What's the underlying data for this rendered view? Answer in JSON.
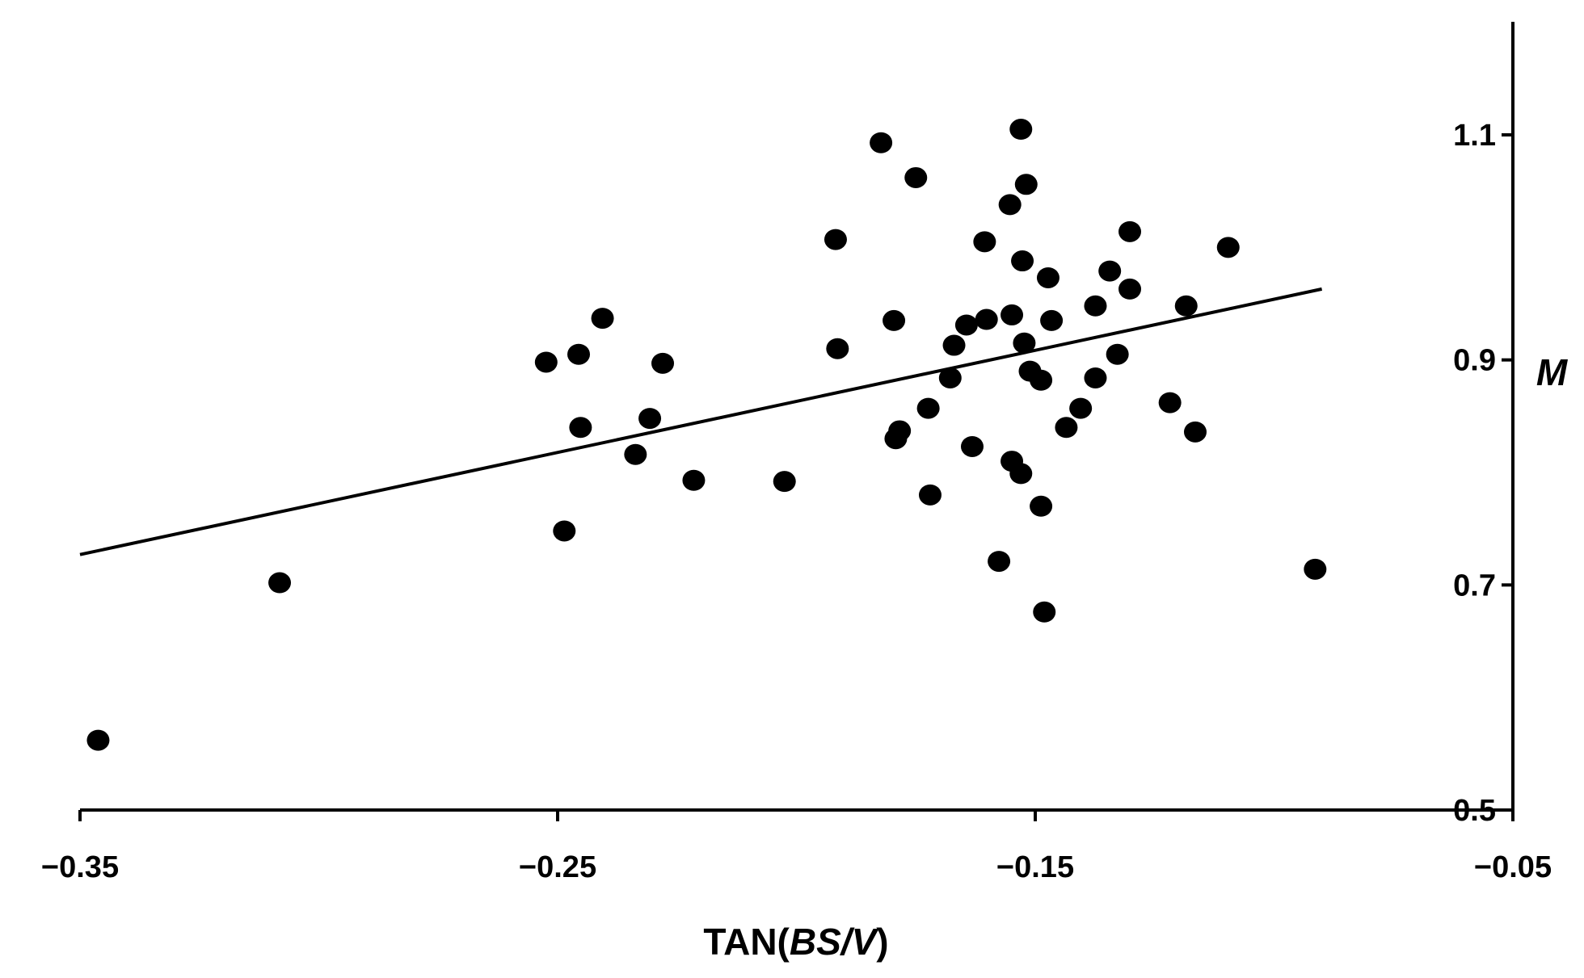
{
  "chart_data": {
    "type": "scatter",
    "xlabel": {
      "prefix": "TAN(",
      "italic_1": "BS",
      "sep": "/",
      "italic_2": "V",
      "suffix": ")"
    },
    "ylabel": "M",
    "xlim": [
      -0.35,
      -0.05
    ],
    "ylim": [
      0.5,
      1.2
    ],
    "x_ticks": [
      -0.35,
      -0.25,
      -0.15,
      -0.05
    ],
    "x_tick_labels": [
      "−0.35",
      "−0.25",
      "−0.15",
      "−0.05"
    ],
    "y_ticks": [
      0.5,
      0.7,
      0.9,
      1.1
    ],
    "y_tick_labels": [
      "0.5",
      "0.7",
      "0.9",
      "1.1"
    ],
    "y_axis_position": "right",
    "grid": false,
    "legend": "none",
    "marker_color": "#000000",
    "line_color": "#000000",
    "trendline": {
      "x": [
        -0.35,
        -0.09
      ],
      "y": [
        0.727,
        0.963
      ]
    },
    "points": [
      [
        -0.3462,
        0.562
      ],
      [
        -0.3082,
        0.702
      ],
      [
        -0.2524,
        0.898
      ],
      [
        -0.2486,
        0.748
      ],
      [
        -0.2456,
        0.905
      ],
      [
        -0.2452,
        0.84
      ],
      [
        -0.2406,
        0.937
      ],
      [
        -0.2337,
        0.816
      ],
      [
        -0.2307,
        0.848
      ],
      [
        -0.228,
        0.897
      ],
      [
        -0.2215,
        0.793
      ],
      [
        -0.2025,
        0.792
      ],
      [
        -0.1918,
        1.007
      ],
      [
        -0.1914,
        0.91
      ],
      [
        -0.1823,
        1.093
      ],
      [
        -0.1796,
        0.935
      ],
      [
        -0.1792,
        0.83
      ],
      [
        -0.1784,
        0.837
      ],
      [
        -0.175,
        1.062
      ],
      [
        -0.1724,
        0.857
      ],
      [
        -0.172,
        0.78
      ],
      [
        -0.1678,
        0.884
      ],
      [
        -0.167,
        0.913
      ],
      [
        -0.1644,
        0.931
      ],
      [
        -0.1632,
        0.823
      ],
      [
        -0.1606,
        1.005
      ],
      [
        -0.1602,
        0.936
      ],
      [
        -0.1576,
        0.721
      ],
      [
        -0.1553,
        1.038
      ],
      [
        -0.1549,
        0.94
      ],
      [
        -0.1549,
        0.81
      ],
      [
        -0.153,
        1.105
      ],
      [
        -0.153,
        0.799
      ],
      [
        -0.1527,
        0.988
      ],
      [
        -0.1523,
        0.915
      ],
      [
        -0.1519,
        1.056
      ],
      [
        -0.1511,
        0.89
      ],
      [
        -0.1488,
        0.882
      ],
      [
        -0.1488,
        0.77
      ],
      [
        -0.1481,
        0.676
      ],
      [
        -0.1473,
        0.973
      ],
      [
        -0.1466,
        0.935
      ],
      [
        -0.1435,
        0.84
      ],
      [
        -0.1405,
        0.857
      ],
      [
        -0.1374,
        0.948
      ],
      [
        -0.1374,
        0.884
      ],
      [
        -0.1344,
        0.979
      ],
      [
        -0.1328,
        0.905
      ],
      [
        -0.1302,
        1.014
      ],
      [
        -0.1302,
        0.963
      ],
      [
        -0.1218,
        0.862
      ],
      [
        -0.1184,
        0.948
      ],
      [
        -0.1165,
        0.836
      ],
      [
        -0.1096,
        1.0
      ],
      [
        -0.0914,
        0.714
      ]
    ]
  }
}
